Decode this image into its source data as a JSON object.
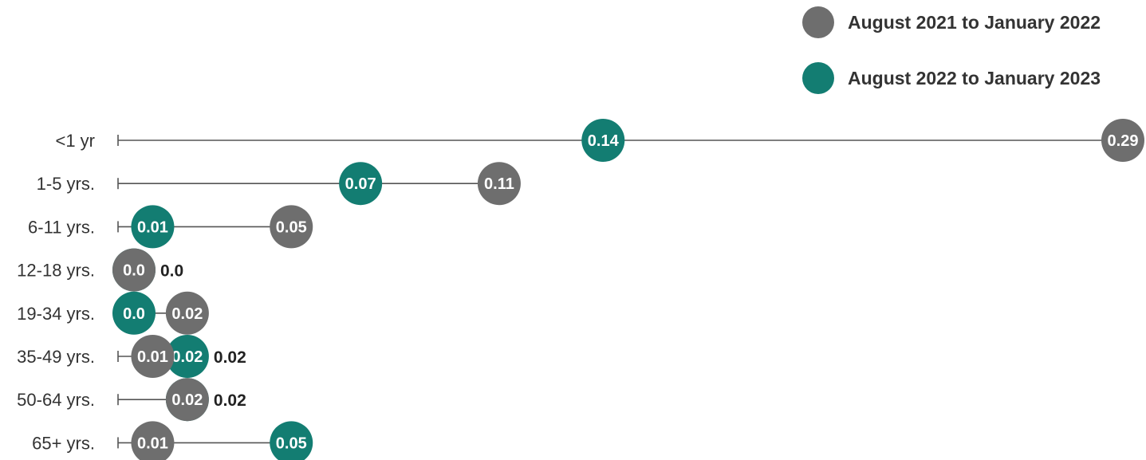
{
  "chart_data": {
    "type": "dot",
    "categories": [
      "<1 yr",
      "1-5 yrs.",
      "6-11 yrs.",
      "12-18 yrs.",
      "19-34 yrs.",
      "35-49 yrs.",
      "50-64 yrs.",
      "65+ yrs."
    ],
    "series": [
      {
        "name": "August 2021 to January 2022",
        "color": "#6e6e6e",
        "values": [
          0.29,
          0.11,
          0.05,
          0.0,
          0.02,
          0.01,
          0.02,
          0.01
        ],
        "labels": [
          "0.29",
          "0.11",
          "0.05",
          "0.0",
          "0.02",
          "0.01",
          "0.02",
          "0.01"
        ]
      },
      {
        "name": "August 2022 to January 2023",
        "color": "#137d72",
        "values": [
          0.14,
          0.07,
          0.01,
          0.0,
          0.0,
          0.02,
          0.02,
          0.05
        ],
        "labels": [
          "0.14",
          "0.07",
          "0.01",
          "0.0",
          "0.0",
          "0.02",
          "0.02",
          "0.05"
        ]
      }
    ],
    "outside_labels": [
      {
        "row": 3,
        "text": "0.0"
      },
      {
        "row": 5,
        "text": "0.02"
      },
      {
        "row": 6,
        "text": "0.02"
      }
    ],
    "xlim": [
      0,
      0.29
    ],
    "legend_position": "top-right",
    "grid": false
  }
}
